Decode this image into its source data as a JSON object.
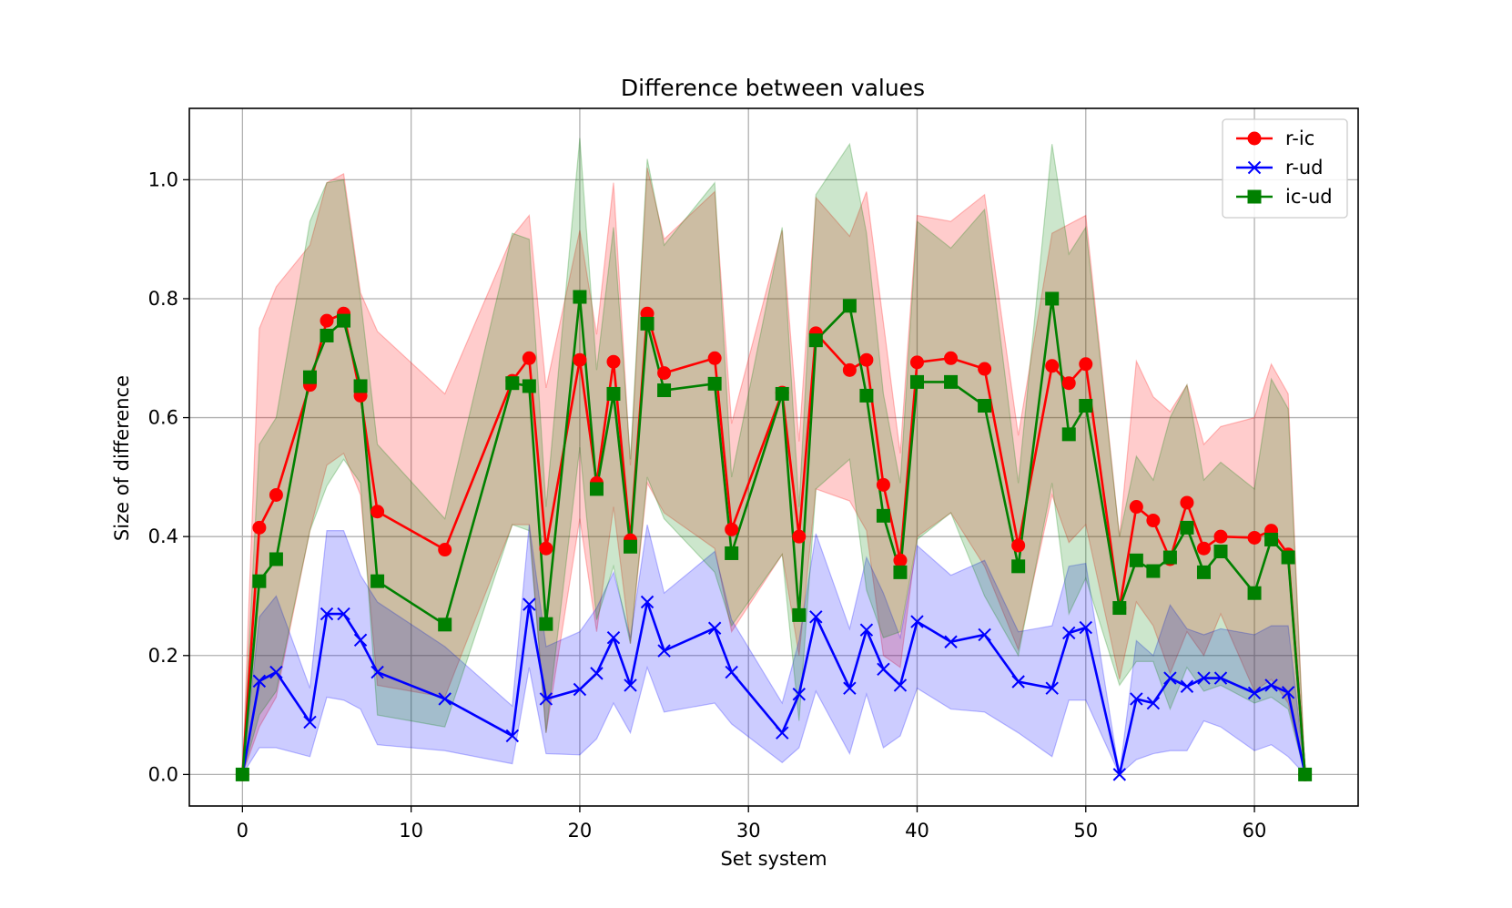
{
  "chart_data": {
    "type": "line",
    "title": "Difference between values",
    "xlabel": "Set system",
    "ylabel": "Size of difference",
    "xlim": [
      -3.15,
      66.15
    ],
    "ylim": [
      -0.053,
      1.12
    ],
    "xticks": [
      0,
      10,
      20,
      30,
      40,
      50,
      60
    ],
    "yticks": [
      0.0,
      0.2,
      0.4,
      0.6,
      0.8,
      1.0
    ],
    "grid": true,
    "legend_position": "top-right",
    "series": [
      {
        "name": "r-ic",
        "color": "#ff0000",
        "marker": "circle",
        "x": [
          0,
          1,
          2,
          4,
          5,
          6,
          7,
          8,
          12,
          16,
          17,
          18,
          20,
          21,
          22,
          23,
          24,
          25,
          28,
          29,
          32,
          33,
          34,
          36,
          37,
          38,
          39,
          40,
          42,
          44,
          46,
          48,
          49,
          50,
          52,
          53,
          54,
          55,
          56,
          57,
          58,
          60,
          61,
          62,
          63
        ],
        "y": [
          0.0,
          0.415,
          0.47,
          0.655,
          0.763,
          0.775,
          0.637,
          0.442,
          0.378,
          0.662,
          0.7,
          0.38,
          0.697,
          0.49,
          0.694,
          0.394,
          0.775,
          0.675,
          0.7,
          0.412,
          0.642,
          0.4,
          0.742,
          0.68,
          0.697,
          0.487,
          0.36,
          0.693,
          0.7,
          0.682,
          0.385,
          0.687,
          0.658,
          0.69,
          0.28,
          0.45,
          0.427,
          0.362,
          0.457,
          0.38,
          0.4,
          0.398,
          0.41,
          0.37,
          0.0
        ],
        "lower": [
          0.0,
          0.08,
          0.13,
          0.41,
          0.52,
          0.54,
          0.47,
          0.15,
          0.13,
          0.42,
          0.42,
          0.07,
          0.43,
          0.24,
          0.45,
          0.22,
          0.49,
          0.44,
          0.38,
          0.24,
          0.37,
          0.2,
          0.48,
          0.46,
          0.41,
          0.2,
          0.18,
          0.4,
          0.44,
          0.35,
          0.21,
          0.47,
          0.39,
          0.42,
          0.16,
          0.29,
          0.25,
          0.17,
          0.24,
          0.2,
          0.27,
          0.14,
          0.16,
          0.12,
          0.0
        ],
        "upper": [
          0.0,
          0.75,
          0.82,
          0.89,
          0.995,
          1.01,
          0.81,
          0.745,
          0.64,
          0.905,
          0.94,
          0.65,
          0.915,
          0.74,
          0.995,
          0.52,
          1.02,
          0.9,
          0.98,
          0.59,
          0.915,
          0.56,
          0.97,
          0.905,
          0.98,
          0.76,
          0.54,
          0.94,
          0.93,
          0.975,
          0.57,
          0.91,
          0.925,
          0.94,
          0.4,
          0.695,
          0.635,
          0.61,
          0.655,
          0.555,
          0.585,
          0.6,
          0.69,
          0.64,
          0.0
        ]
      },
      {
        "name": "r-ud",
        "color": "#0000ff",
        "marker": "x",
        "x": [
          0,
          1,
          2,
          4,
          5,
          6,
          7,
          8,
          12,
          16,
          17,
          18,
          20,
          21,
          22,
          23,
          24,
          25,
          28,
          29,
          32,
          33,
          34,
          36,
          37,
          38,
          39,
          40,
          42,
          44,
          46,
          48,
          49,
          50,
          52,
          53,
          54,
          55,
          56,
          57,
          58,
          60,
          61,
          62,
          63
        ],
        "y": [
          0.0,
          0.157,
          0.172,
          0.088,
          0.27,
          0.27,
          0.226,
          0.172,
          0.127,
          0.065,
          0.286,
          0.127,
          0.143,
          0.17,
          0.23,
          0.15,
          0.29,
          0.208,
          0.246,
          0.172,
          0.07,
          0.135,
          0.265,
          0.145,
          0.243,
          0.177,
          0.15,
          0.257,
          0.223,
          0.235,
          0.156,
          0.145,
          0.238,
          0.247,
          0.0,
          0.127,
          0.12,
          0.162,
          0.148,
          0.162,
          0.162,
          0.137,
          0.15,
          0.138,
          0.0
        ],
        "lower": [
          0.0,
          0.045,
          0.045,
          0.03,
          0.13,
          0.125,
          0.11,
          0.05,
          0.04,
          0.018,
          0.18,
          0.035,
          0.033,
          0.06,
          0.12,
          0.07,
          0.18,
          0.105,
          0.12,
          0.085,
          0.02,
          0.045,
          0.14,
          0.035,
          0.135,
          0.045,
          0.065,
          0.145,
          0.11,
          0.105,
          0.07,
          0.03,
          0.125,
          0.125,
          0.0,
          0.025,
          0.035,
          0.04,
          0.04,
          0.09,
          0.08,
          0.04,
          0.05,
          0.03,
          0.0
        ],
        "upper": [
          0.0,
          0.265,
          0.3,
          0.145,
          0.41,
          0.41,
          0.335,
          0.29,
          0.215,
          0.115,
          0.42,
          0.215,
          0.24,
          0.28,
          0.34,
          0.23,
          0.42,
          0.305,
          0.375,
          0.26,
          0.12,
          0.225,
          0.405,
          0.245,
          0.365,
          0.305,
          0.23,
          0.385,
          0.335,
          0.36,
          0.24,
          0.25,
          0.35,
          0.355,
          0.0,
          0.225,
          0.2,
          0.285,
          0.245,
          0.235,
          0.245,
          0.235,
          0.25,
          0.25,
          0.0
        ]
      },
      {
        "name": "ic-ud",
        "color": "#008000",
        "marker": "square",
        "x": [
          0,
          1,
          2,
          4,
          5,
          6,
          7,
          8,
          12,
          16,
          17,
          18,
          20,
          21,
          22,
          23,
          24,
          25,
          28,
          29,
          32,
          33,
          34,
          36,
          37,
          38,
          39,
          40,
          42,
          44,
          46,
          48,
          49,
          50,
          52,
          53,
          54,
          55,
          56,
          57,
          58,
          60,
          61,
          62,
          63
        ],
        "y": [
          0.0,
          0.325,
          0.362,
          0.668,
          0.738,
          0.763,
          0.653,
          0.325,
          0.252,
          0.658,
          0.653,
          0.253,
          0.803,
          0.48,
          0.64,
          0.383,
          0.758,
          0.646,
          0.657,
          0.372,
          0.64,
          0.268,
          0.73,
          0.788,
          0.637,
          0.435,
          0.34,
          0.66,
          0.66,
          0.62,
          0.35,
          0.8,
          0.572,
          0.62,
          0.28,
          0.36,
          0.342,
          0.365,
          0.415,
          0.34,
          0.375,
          0.305,
          0.395,
          0.365,
          0.0
        ],
        "lower": [
          0.0,
          0.1,
          0.14,
          0.41,
          0.485,
          0.53,
          0.49,
          0.1,
          0.08,
          0.42,
          0.41,
          0.07,
          0.55,
          0.26,
          0.35,
          0.22,
          0.5,
          0.43,
          0.34,
          0.25,
          0.37,
          0.09,
          0.48,
          0.53,
          0.31,
          0.23,
          0.24,
          0.395,
          0.44,
          0.3,
          0.2,
          0.49,
          0.27,
          0.33,
          0.15,
          0.19,
          0.19,
          0.11,
          0.18,
          0.14,
          0.15,
          0.12,
          0.13,
          0.11,
          0.0
        ],
        "upper": [
          0.0,
          0.555,
          0.6,
          0.93,
          0.995,
          1.0,
          0.8,
          0.555,
          0.43,
          0.91,
          0.9,
          0.45,
          1.07,
          0.68,
          0.92,
          0.53,
          1.035,
          0.89,
          0.995,
          0.5,
          0.92,
          0.45,
          0.975,
          1.06,
          0.91,
          0.64,
          0.49,
          0.93,
          0.885,
          0.95,
          0.49,
          1.06,
          0.875,
          0.92,
          0.4,
          0.535,
          0.495,
          0.6,
          0.655,
          0.495,
          0.525,
          0.48,
          0.665,
          0.615,
          0.0
        ]
      }
    ]
  }
}
